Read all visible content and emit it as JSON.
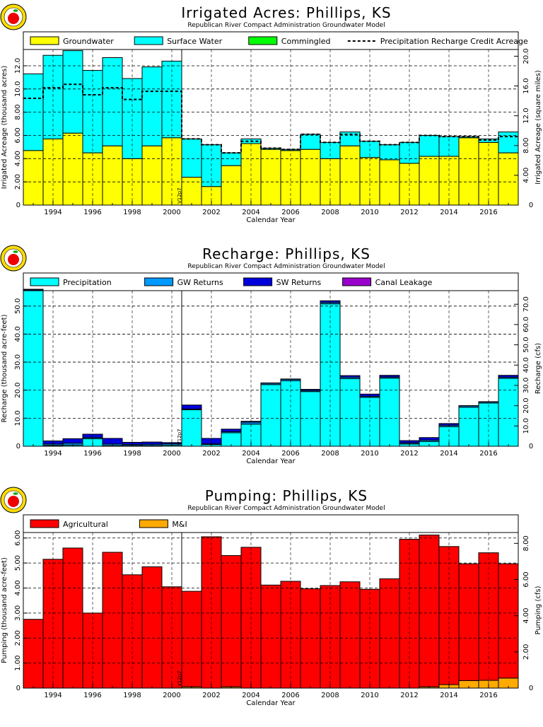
{
  "footer": {
    "model_version": "V12p7"
  },
  "chart_data": [
    {
      "type": "bar",
      "stacked": true,
      "title": "Irrigated Acres: Phillips, KS",
      "subtitle": "Republican River Compact Administration Groundwater Model",
      "xlabel": "Calendar Year",
      "ylabel": "Irrigated Acreage (thousand acres)",
      "y2label": "Irrigated Acreage (square miles)",
      "ylim": [
        0,
        13.4
      ],
      "y2lim": [
        0,
        20.9
      ],
      "yticks": [
        "2.00",
        "4.00",
        "6.00",
        "8.00",
        "10.0",
        "12.0"
      ],
      "y2ticks": [
        "4.00",
        "8.00",
        "12.0",
        "16.0",
        "20.0"
      ],
      "y2_values": [
        4,
        8,
        12,
        16,
        20
      ],
      "grid": true,
      "legend_position": "top",
      "x": [
        1993,
        1994,
        1995,
        1996,
        1997,
        1998,
        1999,
        2000,
        2001,
        2002,
        2003,
        2004,
        2005,
        2006,
        2007,
        2008,
        2009,
        2010,
        2011,
        2012,
        2013,
        2014,
        2015,
        2016,
        2017
      ],
      "xticks": [
        1994,
        1996,
        1998,
        2000,
        2002,
        2004,
        2006,
        2008,
        2010,
        2012,
        2014,
        2016
      ],
      "series": [
        {
          "name": "Groundwater",
          "color": "#ffff00",
          "values": [
            4.7,
            5.7,
            6.2,
            4.5,
            5.1,
            4.0,
            5.1,
            5.8,
            2.4,
            1.6,
            3.4,
            5.3,
            4.8,
            4.7,
            4.8,
            4.0,
            5.1,
            4.1,
            3.9,
            3.6,
            4.2,
            4.2,
            5.8,
            5.4,
            4.5
          ]
        },
        {
          "name": "Surface Water",
          "color": "#00ffff",
          "values": [
            6.6,
            7.2,
            7.1,
            7.1,
            7.6,
            6.9,
            6.8,
            6.6,
            3.3,
            3.6,
            1.1,
            0.4,
            0.1,
            0.1,
            1.3,
            1.4,
            1.2,
            1.4,
            1.3,
            1.8,
            1.8,
            1.7,
            0.1,
            0.3,
            1.8
          ]
        },
        {
          "name": "Commingled",
          "color": "#00ff00",
          "values": [
            0,
            0,
            0,
            0,
            0,
            0,
            0,
            0,
            0,
            0,
            0,
            0,
            0,
            0,
            0,
            0,
            0,
            0,
            0,
            0,
            0,
            0,
            0,
            0,
            0
          ]
        }
      ],
      "line_series": {
        "name": "Precipitation Recharge Credit Acreage",
        "style": "dashed",
        "values": [
          9.2,
          10.1,
          10.4,
          9.5,
          10.1,
          9.1,
          9.8,
          9.8,
          5.7,
          5.2,
          4.5,
          5.5,
          4.9,
          4.8,
          6.1,
          5.4,
          6.1,
          5.5,
          5.2,
          5.4,
          6.0,
          5.9,
          5.9,
          5.6,
          5.9
        ]
      }
    },
    {
      "type": "bar",
      "stacked": true,
      "title": "Recharge: Phillips, KS",
      "subtitle": "Republican River Compact Administration Groundwater Model",
      "xlabel": "Calendar Year",
      "ylabel": "Recharge (thousand acre-feet)",
      "y2label": "Recharge (cfs)",
      "ylim": [
        0,
        55.5
      ],
      "y2lim": [
        0,
        76.7
      ],
      "yticks": [
        "10.0",
        "20.0",
        "30.0",
        "40.0",
        "50.0"
      ],
      "y2ticks": [
        "10.0",
        "20.0",
        "30.0",
        "40.0",
        "50.0",
        "60.0",
        "70.0"
      ],
      "y2_values": [
        10,
        20,
        30,
        40,
        50,
        60,
        70
      ],
      "grid": true,
      "legend_position": "top",
      "x": [
        1993,
        1994,
        1995,
        1996,
        1997,
        1998,
        1999,
        2000,
        2001,
        2002,
        2003,
        2004,
        2005,
        2006,
        2007,
        2008,
        2009,
        2010,
        2011,
        2012,
        2013,
        2014,
        2015,
        2016,
        2017
      ],
      "xticks": [
        1994,
        1996,
        1998,
        2000,
        2002,
        2004,
        2006,
        2008,
        2010,
        2012,
        2014,
        2016
      ],
      "series": [
        {
          "name": "Precipitation",
          "color": "#00ffff",
          "values": [
            55.5,
            0.3,
            0.4,
            2.7,
            0.2,
            0.2,
            0.2,
            0.4,
            13.0,
            0.6,
            4.8,
            7.9,
            22.0,
            23.4,
            19.5,
            50.8,
            24.1,
            17.4,
            24.3,
            0.8,
            1.7,
            7.0,
            13.9,
            15.4,
            24.2
          ]
        },
        {
          "name": "GW Returns",
          "color": "#0099ff",
          "values": [
            0.2,
            0.5,
            0.7,
            0.4,
            0.6,
            0.4,
            0.5,
            0.5,
            0.3,
            0.2,
            0.4,
            0.7,
            0.5,
            0.5,
            0.4,
            0.5,
            0.5,
            0.4,
            0.4,
            0.4,
            0.5,
            0.5,
            0.5,
            0.4,
            0.4
          ]
        },
        {
          "name": "SW Returns",
          "color": "#0000dd",
          "values": [
            0.3,
            1.1,
            1.6,
            1.2,
            2.0,
            0.8,
            0.8,
            0.4,
            1.4,
            2.0,
            0.9,
            0.3,
            0.1,
            0.1,
            0.4,
            0.6,
            0.6,
            0.8,
            0.6,
            0.8,
            0.9,
            0.6,
            0.1,
            0.1,
            0.7
          ]
        },
        {
          "name": "Canal Leakage",
          "color": "#9900cc",
          "values": [
            0,
            0,
            0,
            0,
            0,
            0,
            0,
            0,
            0,
            0,
            0,
            0,
            0,
            0,
            0,
            0,
            0,
            0,
            0,
            0,
            0,
            0,
            0,
            0,
            0
          ]
        }
      ]
    },
    {
      "type": "bar",
      "stacked": true,
      "title": "Pumping: Phillips, KS",
      "subtitle": "Republican River Compact Administration Groundwater Model",
      "xlabel": "Calendar Year",
      "ylabel": "Pumping (thousand acre-feet)",
      "y2label": "Pumping (cfs)",
      "ylim": [
        0,
        6.22
      ],
      "y2lim": [
        0,
        8.6
      ],
      "yticks": [
        "1.00",
        "2.00",
        "3.00",
        "4.00",
        "5.00",
        "6.00"
      ],
      "y2ticks": [
        "2.00",
        "4.00",
        "6.00",
        "8.00"
      ],
      "y2_values": [
        2,
        4,
        6,
        8
      ],
      "grid": true,
      "legend_position": "top",
      "x": [
        1993,
        1994,
        1995,
        1996,
        1997,
        1998,
        1999,
        2000,
        2001,
        2002,
        2003,
        2004,
        2005,
        2006,
        2007,
        2008,
        2009,
        2010,
        2011,
        2012,
        2013,
        2014,
        2015,
        2016,
        2017
      ],
      "xticks": [
        1994,
        1996,
        1998,
        2000,
        2002,
        2004,
        2006,
        2008,
        2010,
        2012,
        2014,
        2016
      ],
      "series": [
        {
          "name": "M&I",
          "color": "#ffaa00",
          "values": [
            0,
            0,
            0,
            0,
            0,
            0,
            0,
            0,
            0.05,
            0,
            0.05,
            0,
            0,
            0,
            0,
            0,
            0,
            0,
            0,
            0,
            0.05,
            0.14,
            0.3,
            0.31,
            0.4
          ]
        },
        {
          "name": "Agricultural",
          "color": "#ff0000",
          "values": [
            2.75,
            5.15,
            5.6,
            3.0,
            5.43,
            4.53,
            4.85,
            4.05,
            3.82,
            6.05,
            5.25,
            5.63,
            4.12,
            4.27,
            3.97,
            4.1,
            4.25,
            3.95,
            4.37,
            5.95,
            6.07,
            5.52,
            4.67,
            5.1,
            4.57
          ]
        }
      ]
    }
  ]
}
